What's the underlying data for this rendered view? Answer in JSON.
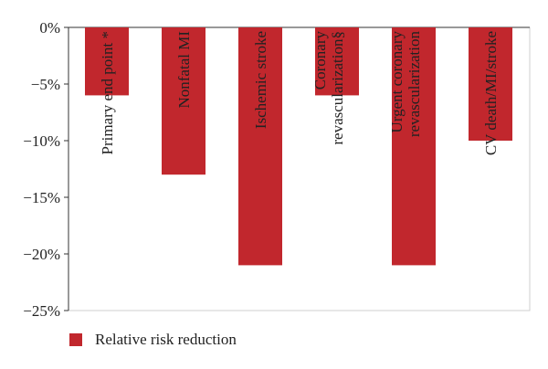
{
  "chart_data": {
    "type": "bar",
    "categories": [
      "Primary end point *",
      "Nonfatal MI",
      "Ischemic stroke",
      "Coronary revascularization§",
      "Urgent coronary revascularization",
      "CV death/MI/stroke"
    ],
    "category_lines": [
      [
        "Primary end point *"
      ],
      [
        "Nonfatal MI"
      ],
      [
        "Ischemic stroke"
      ],
      [
        "Coronary",
        "revascularization§"
      ],
      [
        "Urgent coronary",
        "revascularization"
      ],
      [
        "CV death/MI/stroke"
      ]
    ],
    "series": [
      {
        "name": "Relative risk reduction",
        "values": [
          -6,
          -13,
          -21,
          -6,
          -21,
          -10
        ],
        "color": "#c1272d"
      }
    ],
    "ylim": [
      -25,
      0
    ],
    "yticks": [
      "0%",
      "−5%",
      "−10%",
      "−15%",
      "−20%",
      "−25%"
    ],
    "ytick_values": [
      0,
      -5,
      -10,
      -15,
      -20,
      -25
    ],
    "grid": false,
    "legend_position": "bottom-left"
  }
}
